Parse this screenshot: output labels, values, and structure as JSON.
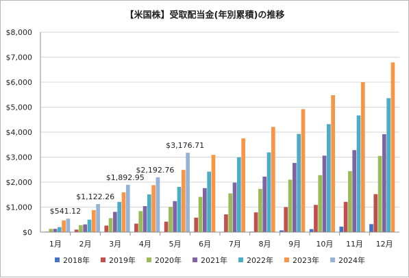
{
  "chart_data": {
    "type": "bar",
    "title": "【米国株】受取配当金(年別累積)の推移",
    "xlabel": "",
    "ylabel": "",
    "categories": [
      "1月",
      "2月",
      "3月",
      "4月",
      "5月",
      "6月",
      "7月",
      "8月",
      "9月",
      "10月",
      "11月",
      "12月"
    ],
    "ylim": [
      0,
      8000
    ],
    "yticks": [
      "$0",
      "$1,000",
      "$2,000",
      "$3,000",
      "$4,000",
      "$5,000",
      "$6,000",
      "$7,000",
      "$8,000"
    ],
    "ytick_values": [
      0,
      1000,
      2000,
      3000,
      4000,
      5000,
      6000,
      7000,
      8000
    ],
    "grid": true,
    "legend_position": "bottom",
    "series": [
      {
        "name": "2018年",
        "color": "#4472c4",
        "values": [
          0,
          0,
          0,
          0,
          0,
          0,
          0,
          20,
          70,
          120,
          220,
          320
        ]
      },
      {
        "name": "2019年",
        "color": "#c0504d",
        "values": [
          20,
          100,
          260,
          340,
          420,
          580,
          710,
          790,
          1000,
          1090,
          1210,
          1520
        ]
      },
      {
        "name": "2020年",
        "color": "#9bbb59",
        "values": [
          130,
          280,
          560,
          840,
          1010,
          1410,
          1550,
          1730,
          2100,
          2280,
          2440,
          3050
        ]
      },
      {
        "name": "2021年",
        "color": "#7f63a2",
        "values": [
          130,
          310,
          810,
          1040,
          1240,
          1760,
          1980,
          2220,
          2770,
          3060,
          3280,
          3920
        ]
      },
      {
        "name": "2022年",
        "color": "#4aacc6",
        "values": [
          200,
          500,
          1210,
          1510,
          1810,
          2420,
          2990,
          3190,
          3930,
          4320,
          4670,
          5360
        ]
      },
      {
        "name": "2023年",
        "color": "#f79646",
        "values": [
          470,
          880,
          1590,
          1880,
          2490,
          3090,
          3750,
          4210,
          4920,
          5480,
          6000,
          6790
        ]
      },
      {
        "name": "2024年",
        "color": "#95b3d7",
        "values": [
          541.12,
          1122.26,
          1892.95,
          2192.76,
          3176.71,
          null,
          null,
          null,
          null,
          null,
          null,
          null
        ]
      }
    ],
    "data_labels": [
      {
        "series": "2024年",
        "index": 0,
        "text": "$541.12"
      },
      {
        "series": "2024年",
        "index": 1,
        "text": "$1,122.26"
      },
      {
        "series": "2024年",
        "index": 2,
        "text": "$1,892.95"
      },
      {
        "series": "2024年",
        "index": 3,
        "text": "$2,192.76"
      },
      {
        "series": "2024年",
        "index": 4,
        "text": "$3,176.71"
      }
    ]
  }
}
